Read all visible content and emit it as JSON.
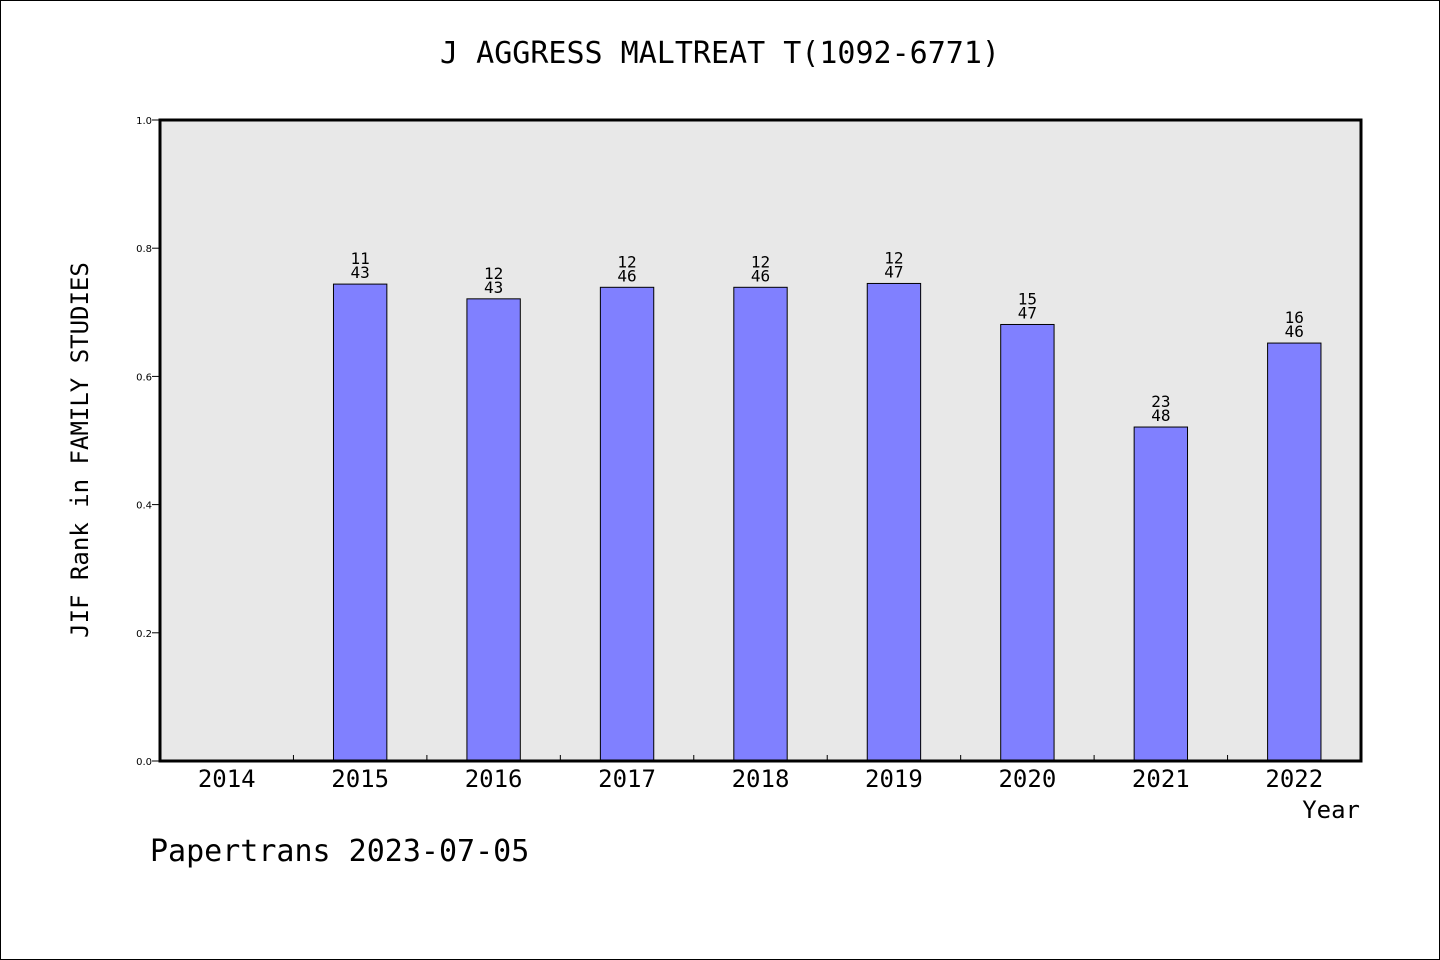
{
  "page": {
    "title": "J AGGRESS MALTREAT T(1092-6771)",
    "footer": "Papertrans 2023-07-05"
  },
  "chart_data": {
    "type": "bar",
    "title": "J AGGRESS MALTREAT T(1092-6771)",
    "xlabel": "Year",
    "ylabel": "JIF Rank in FAMILY STUDIES",
    "ylim": [
      0,
      1.0
    ],
    "yticks": [
      "0.0",
      "0.2",
      "0.4",
      "0.6",
      "0.8",
      "1.0"
    ],
    "categories": [
      "2014",
      "2015",
      "2016",
      "2017",
      "2018",
      "2019",
      "2020",
      "2021",
      "2022"
    ],
    "values": [
      null,
      0.744,
      0.721,
      0.739,
      0.739,
      0.745,
      0.681,
      0.521,
      0.652
    ],
    "rank": [
      null,
      "11",
      "12",
      "12",
      "12",
      "12",
      "15",
      "23",
      "16"
    ],
    "total": [
      null,
      "43",
      "43",
      "46",
      "46",
      "47",
      "47",
      "48",
      "46"
    ],
    "bar_color": "#8080ff",
    "plot_background": "#e8e8e8"
  }
}
